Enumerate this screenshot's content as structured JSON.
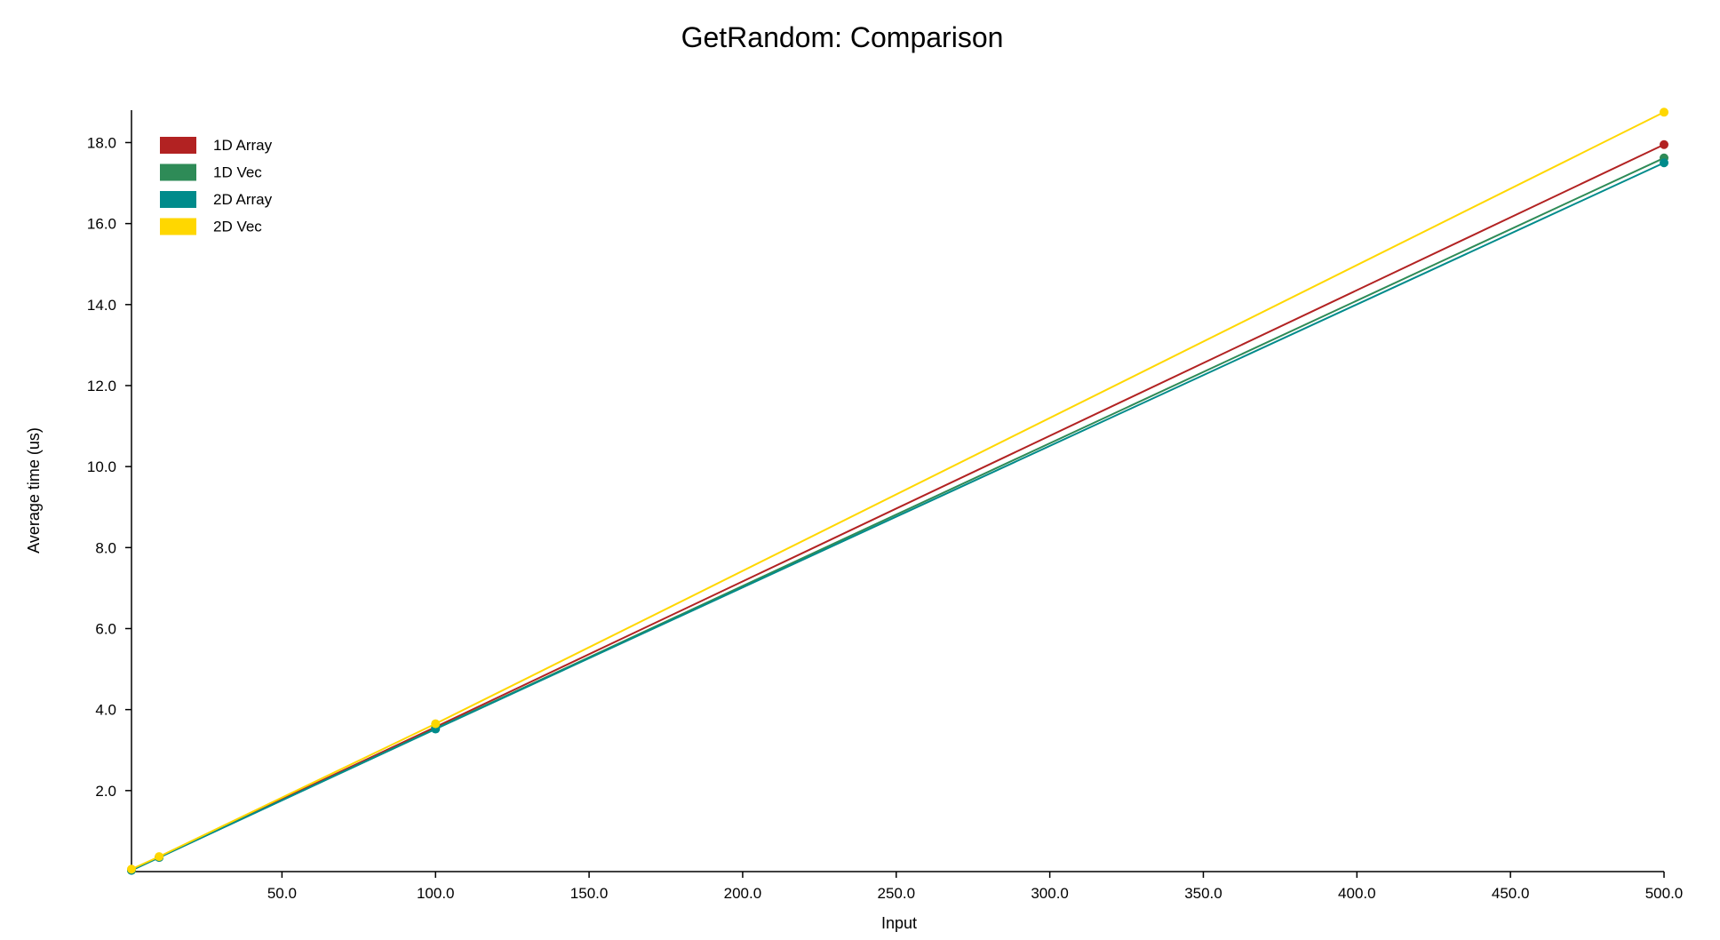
{
  "chart_data": {
    "type": "line",
    "title": "GetRandom: Comparison",
    "xlabel": "Input",
    "ylabel": "Average time (us)",
    "x": [
      1,
      10,
      100,
      500
    ],
    "xlim": [
      1,
      500
    ],
    "ylim": [
      0,
      18.8
    ],
    "x_ticks": [
      50,
      100,
      150,
      200,
      250,
      300,
      350,
      400,
      450,
      500
    ],
    "x_tick_labels": [
      "50.0",
      "100.0",
      "150.0",
      "200.0",
      "250.0",
      "300.0",
      "350.0",
      "400.0",
      "450.0",
      "500.0"
    ],
    "y_ticks": [
      2,
      4,
      6,
      8,
      10,
      12,
      14,
      16,
      18
    ],
    "y_tick_labels": [
      "2.0",
      "4.0",
      "6.0",
      "8.0",
      "10.0",
      "12.0",
      "14.0",
      "16.0",
      "18.0"
    ],
    "grid": false,
    "legend_position": "top-left",
    "series": [
      {
        "name": "1D Array",
        "color": "#b22222",
        "values": [
          0.04,
          0.36,
          3.57,
          17.95
        ]
      },
      {
        "name": "1D Vec",
        "color": "#2e8b57",
        "values": [
          0.03,
          0.35,
          3.53,
          17.62
        ]
      },
      {
        "name": "2D Array",
        "color": "#008b8b",
        "values": [
          0.03,
          0.35,
          3.52,
          17.5
        ]
      },
      {
        "name": "2D Vec",
        "color": "#ffd700",
        "values": [
          0.06,
          0.37,
          3.65,
          18.75
        ]
      }
    ]
  }
}
